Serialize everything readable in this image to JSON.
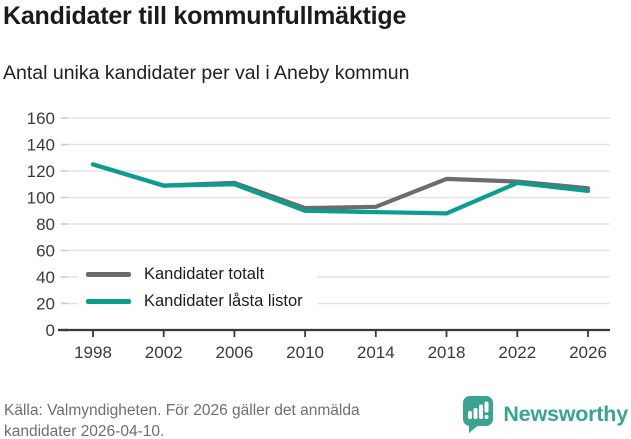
{
  "header": {
    "title": "Kandidater till kommunfullmäktige",
    "subtitle": "Antal unika kandidater per val i Aneby kommun"
  },
  "chart_data": {
    "type": "line",
    "x": [
      1998,
      2002,
      2006,
      2010,
      2014,
      2018,
      2022,
      2026
    ],
    "series": [
      {
        "name": "Kandidater totalt",
        "color": "#6b6b70",
        "values": [
          125,
          109,
          111,
          92,
          93,
          114,
          112,
          107
        ]
      },
      {
        "name": "Kandidater låsta listor",
        "color": "#0a9e8f",
        "values": [
          125,
          109,
          110,
          90,
          89,
          88,
          111,
          105
        ]
      }
    ],
    "ylim": [
      0,
      160
    ],
    "yticks": [
      0,
      20,
      40,
      60,
      80,
      100,
      120,
      140,
      160
    ],
    "grid": true,
    "legend_position": "inside-bottom-left",
    "xlabel": "",
    "ylabel": ""
  },
  "footer": {
    "source": "Källa: Valmyndigheten. För 2026 gäller det anmälda kandidater 2026-04-10.",
    "brand": "Newsworthy"
  },
  "colors": {
    "teal_line": "#0a9e8f",
    "gray_line": "#6b6b70",
    "logo_teal": "#3aa391",
    "grid": "#e3e3e3",
    "axis": "#3a3a3a"
  }
}
